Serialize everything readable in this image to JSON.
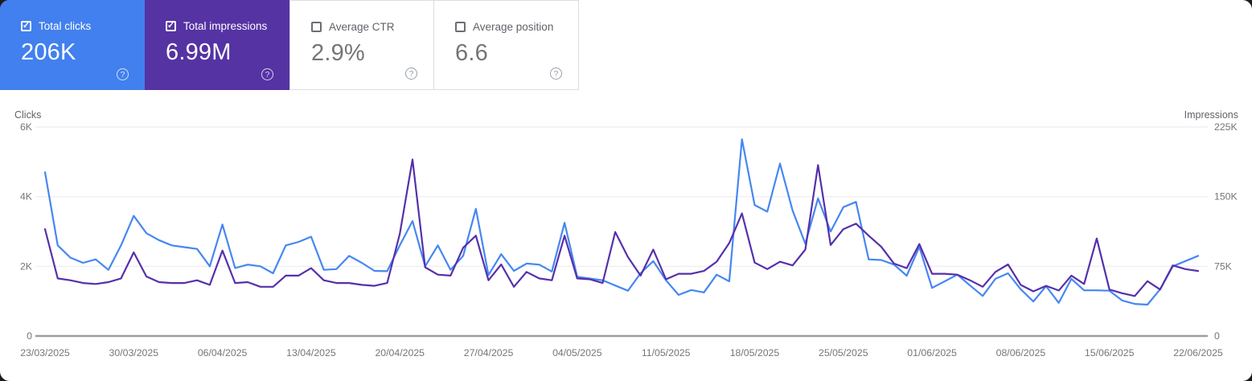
{
  "cards": [
    {
      "label": "Total clicks",
      "value": "206K",
      "selected": true,
      "checkbox": "checked",
      "color": "#4180ee"
    },
    {
      "label": "Total impressions",
      "value": "6.99M",
      "selected": true,
      "checkbox": "checked",
      "color": "#5533a3"
    },
    {
      "label": "Average CTR",
      "value": "2.9%",
      "selected": false,
      "checkbox": "unchecked",
      "color": "#ffffff"
    },
    {
      "label": "Average position",
      "value": "6.6",
      "selected": false,
      "checkbox": "unchecked",
      "color": "#ffffff"
    }
  ],
  "chart_data": {
    "type": "line",
    "grid": "horizontal-only",
    "legend": "none",
    "x_start_date": "23/03/2025",
    "x_end_date": "22/06/2025",
    "x_tick_days": [
      0,
      7,
      14,
      21,
      28,
      35,
      42,
      49,
      56,
      63,
      70,
      77,
      84,
      91
    ],
    "x_tick_labels": [
      "23/03/2025",
      "30/03/2025",
      "06/04/2025",
      "13/04/2025",
      "20/04/2025",
      "27/04/2025",
      "04/05/2025",
      "11/05/2025",
      "18/05/2025",
      "25/05/2025",
      "01/06/2025",
      "08/06/2025",
      "15/06/2025",
      "22/06/2025"
    ],
    "left_axis": {
      "title": "Clicks",
      "max": 6000,
      "ticks": [
        {
          "v": 0,
          "label": "0"
        },
        {
          "v": 2000,
          "label": "2K"
        },
        {
          "v": 4000,
          "label": "4K"
        },
        {
          "v": 6000,
          "label": "6K"
        }
      ]
    },
    "right_axis": {
      "title": "Impressions",
      "max": 225000,
      "ticks": [
        {
          "v": 0,
          "label": "0"
        },
        {
          "v": 75000,
          "label": "75K"
        },
        {
          "v": 150000,
          "label": "150K"
        },
        {
          "v": 225000,
          "label": "225K"
        }
      ]
    },
    "series": [
      {
        "name": "Clicks",
        "axis": "left",
        "color": "#4687f1",
        "values": [
          4700,
          2600,
          2250,
          2100,
          2200,
          1900,
          2600,
          3450,
          2950,
          2750,
          2600,
          2550,
          2500,
          2000,
          3200,
          1950,
          2050,
          2000,
          1800,
          2600,
          2700,
          2850,
          1900,
          1920,
          2300,
          2100,
          1870,
          1860,
          2600,
          3300,
          2000,
          2600,
          1900,
          2300,
          3650,
          1750,
          2350,
          1870,
          2080,
          2050,
          1850,
          3250,
          1700,
          1650,
          1600,
          1450,
          1300,
          1800,
          2150,
          1600,
          1180,
          1320,
          1250,
          1760,
          1570,
          5650,
          3760,
          3570,
          4950,
          3600,
          2650,
          3950,
          3000,
          3700,
          3850,
          2200,
          2180,
          2050,
          1730,
          2560,
          1380,
          1570,
          1760,
          1450,
          1150,
          1640,
          1800,
          1340,
          990,
          1430,
          950,
          1640,
          1310,
          1310,
          1300,
          1020,
          920,
          900,
          1340,
          2000,
          2150,
          2300
        ]
      },
      {
        "name": "Impressions",
        "axis": "right",
        "color": "#5630ab",
        "values": [
          115000,
          62000,
          60000,
          57000,
          56000,
          58000,
          62000,
          90000,
          64000,
          58000,
          57000,
          57000,
          60000,
          55000,
          92000,
          57000,
          58000,
          53000,
          53000,
          65000,
          65000,
          73000,
          60000,
          57000,
          57000,
          55000,
          54000,
          57000,
          110000,
          190000,
          74000,
          66000,
          65000,
          95000,
          108000,
          60000,
          77000,
          53000,
          69000,
          62000,
          60000,
          108000,
          62000,
          61000,
          57000,
          112000,
          85000,
          65000,
          93000,
          61000,
          67000,
          67000,
          70000,
          80000,
          100000,
          132000,
          79000,
          72000,
          80000,
          76000,
          93000,
          184000,
          98000,
          115000,
          121000,
          108000,
          96000,
          78000,
          73000,
          99000,
          67000,
          67000,
          66000,
          60000,
          53000,
          69000,
          77000,
          55000,
          48000,
          54000,
          49000,
          65000,
          56000,
          105000,
          50000,
          46000,
          43000,
          59000,
          50000,
          76000,
          72000,
          70000
        ]
      }
    ]
  }
}
